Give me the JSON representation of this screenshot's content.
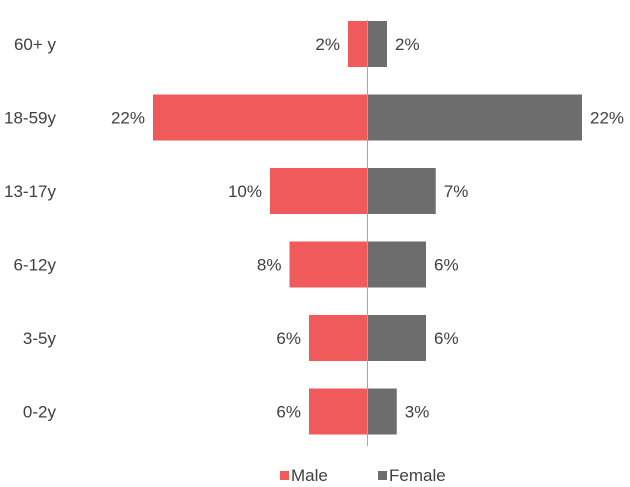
{
  "chart_data": {
    "type": "bar",
    "orientation": "horizontal-diverging",
    "categories": [
      "60+ y",
      "18-59y",
      "13-17y",
      "6-12y",
      "3-5y",
      "0-2y"
    ],
    "series": [
      {
        "name": "Male",
        "values": [
          2,
          22,
          10,
          8,
          6,
          6
        ],
        "labels": [
          "2%",
          "22%",
          "10%",
          "8%",
          "6%",
          "6%"
        ],
        "color": "#f05a5a",
        "side": "left"
      },
      {
        "name": "Female",
        "values": [
          2,
          22,
          7,
          6,
          6,
          3
        ],
        "labels": [
          "2%",
          "22%",
          "7%",
          "6%",
          "6%",
          "3%"
        ],
        "color": "#6d6d6d",
        "side": "right"
      }
    ],
    "unit": "%",
    "legend": "bottom-center",
    "grid": false,
    "xlim": [
      -22,
      22
    ]
  }
}
